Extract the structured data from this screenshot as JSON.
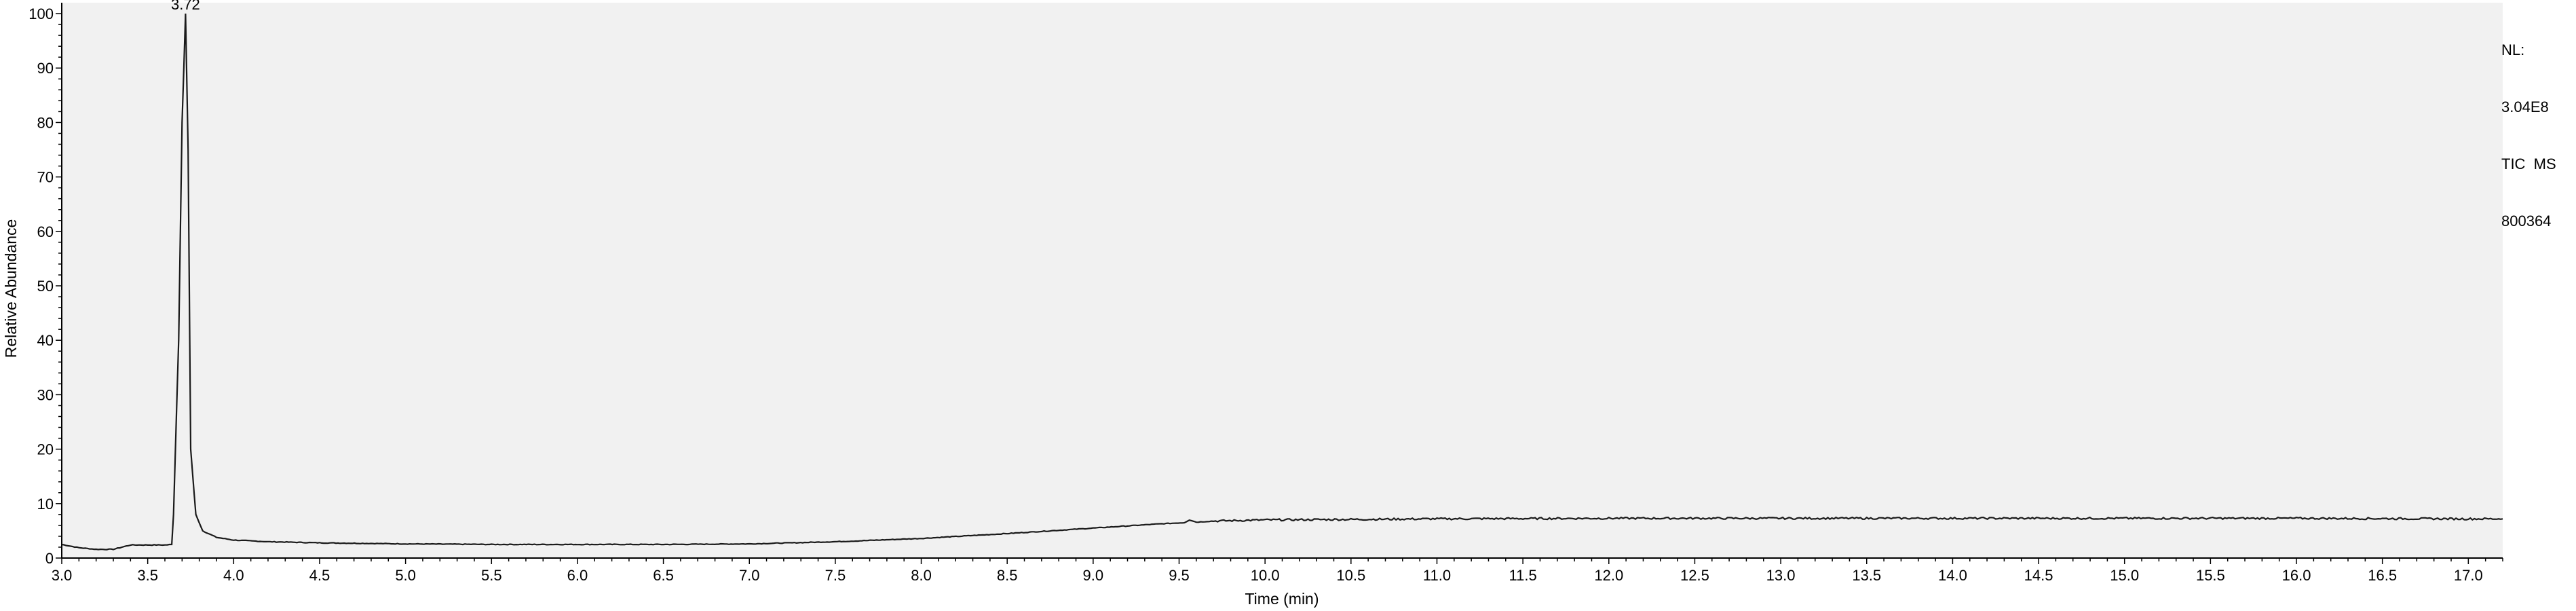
{
  "info": {
    "nl_label": "NL:",
    "nl_value": "3.04E8",
    "trace": "TIC  MS",
    "sample": "800364"
  },
  "chart_data": {
    "type": "line",
    "title": "",
    "xlabel": "Time (min)",
    "ylabel": "Relative Abundance",
    "xlim": [
      3.0,
      17.2
    ],
    "ylim": [
      0,
      102
    ],
    "x_ticks": [
      3.0,
      3.5,
      4.0,
      4.5,
      5.0,
      5.5,
      6.0,
      6.5,
      7.0,
      7.5,
      8.0,
      8.5,
      9.0,
      9.5,
      10.0,
      10.5,
      11.0,
      11.5,
      12.0,
      12.5,
      13.0,
      13.5,
      14.0,
      14.5,
      15.0,
      15.5,
      16.0,
      16.5,
      17.0
    ],
    "x_tick_labels": [
      "3.0",
      "3.5",
      "4.0",
      "4.5",
      "5.0",
      "5.5",
      "6.0",
      "6.5",
      "7.0",
      "7.5",
      "8.0",
      "8.5",
      "9.0",
      "9.5",
      "10.0",
      "10.5",
      "11.0",
      "11.5",
      "12.0",
      "12.5",
      "13.0",
      "13.5",
      "14.0",
      "14.5",
      "15.0",
      "15.5",
      "16.0",
      "16.5",
      "17.0"
    ],
    "y_ticks": [
      0,
      10,
      20,
      30,
      40,
      50,
      60,
      70,
      80,
      90,
      100
    ],
    "y_tick_labels": [
      "0",
      "10",
      "20",
      "30",
      "40",
      "50",
      "60",
      "70",
      "80",
      "90",
      "100"
    ],
    "grid": false,
    "series": [
      {
        "x": [
          3.0,
          3.05,
          3.1,
          3.2,
          3.3,
          3.35,
          3.4,
          3.5,
          3.6,
          3.64,
          3.65,
          3.68,
          3.7,
          3.72,
          3.735,
          3.75,
          3.78,
          3.82,
          3.9,
          4.0,
          4.2,
          4.5,
          5.0,
          5.5,
          6.0,
          6.5,
          7.0,
          7.5,
          8.0,
          8.5,
          9.0,
          9.4,
          9.53,
          9.56,
          9.6,
          9.7,
          10.0,
          10.5,
          11.0,
          12.0,
          13.0,
          14.0,
          15.0,
          16.0,
          17.0,
          17.2
        ],
        "y": [
          2.5,
          2.2,
          1.9,
          1.6,
          1.6,
          2.0,
          2.4,
          2.4,
          2.4,
          2.5,
          8.0,
          40.0,
          80.0,
          100.0,
          75.0,
          20.0,
          8.0,
          5.0,
          3.8,
          3.3,
          3.0,
          2.8,
          2.6,
          2.5,
          2.5,
          2.5,
          2.6,
          3.0,
          3.6,
          4.5,
          5.5,
          6.3,
          6.5,
          7.0,
          6.6,
          6.8,
          7.0,
          7.1,
          7.2,
          7.3,
          7.3,
          7.3,
          7.3,
          7.3,
          7.2,
          7.2
        ]
      }
    ],
    "annotations": [
      {
        "text": "3.72",
        "x": 3.72,
        "y": 100.0
      }
    ],
    "colors": {
      "plot_bg": "#f1f1f1",
      "line": "#1a1a1a",
      "axis": "#000000"
    }
  }
}
